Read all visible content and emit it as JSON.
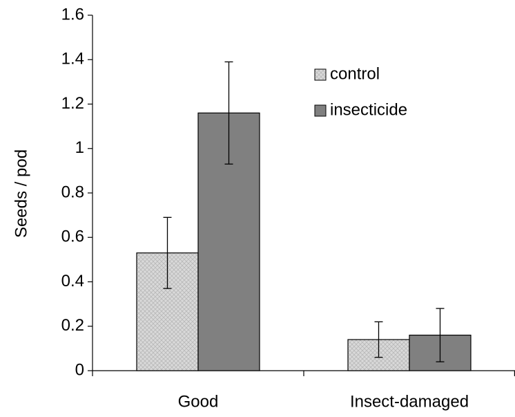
{
  "chart_data": {
    "type": "bar",
    "y_label": "Seeds / pod",
    "categories": [
      "Good",
      "Insect-damaged"
    ],
    "series": [
      {
        "name": "control",
        "color": "#d9d9d9",
        "hatch": true,
        "values": [
          0.53,
          0.14
        ],
        "errors": [
          0.16,
          0.08
        ]
      },
      {
        "name": "insecticide",
        "color": "#808080",
        "hatch": false,
        "values": [
          1.16,
          0.16
        ],
        "errors": [
          0.23,
          0.12
        ]
      }
    ],
    "ylim": [
      0,
      1.6
    ],
    "yticks": [
      0,
      0.2,
      0.4,
      0.6,
      0.8,
      1,
      1.2,
      1.4,
      1.6
    ],
    "grid": false,
    "legend": "upper right"
  }
}
